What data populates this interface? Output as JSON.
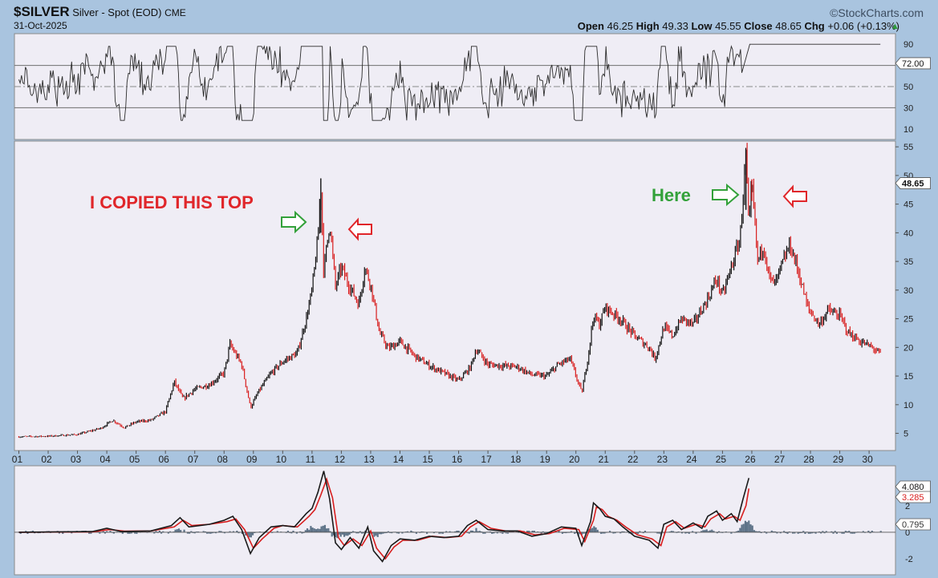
{
  "header": {
    "symbol": "$SILVER",
    "name": "Silver - Spot (EOD)",
    "exchange": "CME",
    "date": "31-Oct-2025",
    "brand": "©StockCharts.com",
    "open_label": "Open",
    "open": "46.25",
    "high_label": "High",
    "high": "49.33",
    "low_label": "Low",
    "low": "45.55",
    "close_label": "Close",
    "close": "48.65",
    "chg_label": "Chg",
    "chg": "+0.06 (+0.13%)",
    "chg_arrow": "▲"
  },
  "colors": {
    "background": "#a9c4df",
    "panel": "#efedf5",
    "up": "#111111",
    "down": "#d81e1e",
    "annotation_red": "#e0262a",
    "annotation_green": "#33a13a",
    "hist": "#5e7388"
  },
  "annotations": {
    "left_text": "I COPIED THIS TOP",
    "right_text": "Here"
  },
  "chart_data": [
    {
      "type": "line",
      "panel": "rsi",
      "ylim": [
        0,
        100
      ],
      "ticks": [
        "90",
        "70",
        "50",
        "30",
        "10"
      ],
      "guide_lines": [
        70,
        50,
        30
      ],
      "last_value_label": "72.00",
      "last_value": 72
    },
    {
      "type": "candlestick",
      "panel": "price",
      "ylim": [
        2,
        56
      ],
      "y_ticks": [
        "55",
        "50",
        "45",
        "40",
        "35",
        "30",
        "25",
        "20",
        "15",
        "10",
        "5"
      ],
      "x_ticks": [
        "01",
        "02",
        "03",
        "04",
        "05",
        "06",
        "07",
        "08",
        "09",
        "10",
        "11",
        "12",
        "13",
        "14",
        "15",
        "16",
        "17",
        "18",
        "19",
        "20",
        "21",
        "22",
        "23",
        "24",
        "25",
        "26",
        "27",
        "28",
        "29",
        "30"
      ],
      "last_value_label": "48.65",
      "last_value": 48.65,
      "series": [
        {
          "values": [
            [
              2001.0,
              4.4
            ],
            [
              2002.0,
              4.5
            ],
            [
              2003.0,
              4.8
            ],
            [
              2003.8,
              5.9
            ],
            [
              2004.2,
              7.3
            ],
            [
              2004.6,
              6.0
            ],
            [
              2005.0,
              7.0
            ],
            [
              2005.5,
              7.3
            ],
            [
              2006.0,
              8.8
            ],
            [
              2006.3,
              14.0
            ],
            [
              2006.6,
              11.0
            ],
            [
              2007.0,
              12.7
            ],
            [
              2007.5,
              13.5
            ],
            [
              2008.0,
              15.5
            ],
            [
              2008.2,
              20.5
            ],
            [
              2008.6,
              17.0
            ],
            [
              2008.9,
              9.5
            ],
            [
              2009.2,
              12.5
            ],
            [
              2009.6,
              15.5
            ],
            [
              2010.0,
              17.5
            ],
            [
              2010.5,
              19.0
            ],
            [
              2010.8,
              25.0
            ],
            [
              2011.0,
              30.0
            ],
            [
              2011.2,
              39.0
            ],
            [
              2011.3,
              48.5
            ],
            [
              2011.4,
              33.0
            ],
            [
              2011.6,
              42.0
            ],
            [
              2011.8,
              30.5
            ],
            [
              2012.0,
              34.0
            ],
            [
              2012.2,
              31.5
            ],
            [
              2012.6,
              27.5
            ],
            [
              2012.8,
              34.0
            ],
            [
              2013.0,
              31.0
            ],
            [
              2013.3,
              22.5
            ],
            [
              2013.6,
              19.8
            ],
            [
              2014.0,
              21.0
            ],
            [
              2014.5,
              18.5
            ],
            [
              2015.0,
              16.8
            ],
            [
              2015.5,
              15.5
            ],
            [
              2016.0,
              14.2
            ],
            [
              2016.4,
              16.5
            ],
            [
              2016.6,
              19.7
            ],
            [
              2017.0,
              17.0
            ],
            [
              2017.5,
              16.8
            ],
            [
              2018.0,
              16.6
            ],
            [
              2018.5,
              15.2
            ],
            [
              2019.0,
              15.0
            ],
            [
              2019.4,
              17.0
            ],
            [
              2019.8,
              18.0
            ],
            [
              2020.2,
              12.0
            ],
            [
              2020.4,
              18.0
            ],
            [
              2020.6,
              25.5
            ],
            [
              2020.8,
              24.0
            ],
            [
              2021.0,
              27.0
            ],
            [
              2021.5,
              25.0
            ],
            [
              2022.0,
              22.0
            ],
            [
              2022.5,
              20.0
            ],
            [
              2022.7,
              18.0
            ],
            [
              2023.0,
              23.5
            ],
            [
              2023.3,
              22.0
            ],
            [
              2023.6,
              25.0
            ],
            [
              2024.0,
              24.0
            ],
            [
              2024.5,
              28.5
            ],
            [
              2024.8,
              32.0
            ],
            [
              2025.0,
              29.0
            ],
            [
              2025.3,
              34.0
            ],
            [
              2025.6,
              39.0
            ],
            [
              2025.8,
              54.0
            ],
            [
              2025.9,
              40.0
            ],
            [
              2026.0,
              48.65
            ],
            [
              2026.2,
              35.0
            ],
            [
              2026.4,
              38.0
            ],
            [
              2026.6,
              32.0
            ],
            [
              2026.8,
              31.0
            ],
            [
              2027.0,
              34.0
            ],
            [
              2027.3,
              38.0
            ],
            [
              2027.6,
              33.0
            ],
            [
              2027.9,
              27.0
            ],
            [
              2028.3,
              24.0
            ],
            [
              2028.6,
              26.5
            ],
            [
              2029.0,
              25.5
            ],
            [
              2029.3,
              22.5
            ],
            [
              2029.7,
              21.0
            ],
            [
              2030.1,
              20.0
            ],
            [
              2030.4,
              18.8
            ]
          ]
        }
      ]
    },
    {
      "type": "line",
      "panel": "macd",
      "ylim": [
        -3.2,
        5
      ],
      "ticks": [
        "2",
        "0",
        "-2"
      ],
      "last_value_labels": [
        "4.080",
        "3.285",
        "0.795"
      ],
      "last_values": [
        4.08,
        3.285,
        0.795
      ],
      "series": [
        {
          "name_key": "macd",
          "values": [
            [
              2001.0,
              0.0
            ],
            [
              2003.5,
              0.05
            ],
            [
              2004.0,
              0.3
            ],
            [
              2004.5,
              0.05
            ],
            [
              2005.5,
              0.1
            ],
            [
              2006.2,
              0.5
            ],
            [
              2006.5,
              1.1
            ],
            [
              2006.8,
              0.4
            ],
            [
              2007.5,
              0.6
            ],
            [
              2008.0,
              0.9
            ],
            [
              2008.3,
              1.2
            ],
            [
              2008.6,
              0.2
            ],
            [
              2008.9,
              -1.6
            ],
            [
              2009.2,
              -0.4
            ],
            [
              2009.6,
              0.4
            ],
            [
              2010.0,
              0.5
            ],
            [
              2010.4,
              0.4
            ],
            [
              2010.8,
              1.4
            ],
            [
              2011.0,
              1.8
            ],
            [
              2011.2,
              3.0
            ],
            [
              2011.4,
              4.6
            ],
            [
              2011.6,
              2.5
            ],
            [
              2011.8,
              -0.8
            ],
            [
              2012.0,
              -1.3
            ],
            [
              2012.3,
              -0.4
            ],
            [
              2012.6,
              -1.2
            ],
            [
              2012.9,
              0.4
            ],
            [
              2013.1,
              -1.4
            ],
            [
              2013.4,
              -2.2
            ],
            [
              2013.7,
              -1.0
            ],
            [
              2014.0,
              -0.5
            ],
            [
              2014.5,
              -0.6
            ],
            [
              2015.0,
              -0.3
            ],
            [
              2015.5,
              -0.4
            ],
            [
              2016.0,
              -0.3
            ],
            [
              2016.3,
              0.5
            ],
            [
              2016.6,
              0.9
            ],
            [
              2017.0,
              0.2
            ],
            [
              2017.5,
              0.1
            ],
            [
              2018.0,
              0.1
            ],
            [
              2018.5,
              -0.3
            ],
            [
              2019.0,
              -0.1
            ],
            [
              2019.5,
              0.4
            ],
            [
              2020.0,
              0.3
            ],
            [
              2020.2,
              -1.0
            ],
            [
              2020.5,
              0.8
            ],
            [
              2020.6,
              2.2
            ],
            [
              2020.8,
              1.8
            ],
            [
              2021.0,
              1.2
            ],
            [
              2021.3,
              1.0
            ],
            [
              2021.6,
              0.4
            ],
            [
              2022.0,
              -0.3
            ],
            [
              2022.5,
              -0.6
            ],
            [
              2022.8,
              -1.2
            ],
            [
              2023.0,
              0.6
            ],
            [
              2023.3,
              0.9
            ],
            [
              2023.6,
              0.2
            ],
            [
              2024.0,
              0.7
            ],
            [
              2024.3,
              0.3
            ],
            [
              2024.5,
              1.2
            ],
            [
              2024.8,
              1.6
            ],
            [
              2025.0,
              0.9
            ],
            [
              2025.3,
              1.4
            ],
            [
              2025.5,
              0.8
            ],
            [
              2025.7,
              2.5
            ],
            [
              2025.9,
              4.08
            ]
          ]
        },
        {
          "name_key": "signal",
          "values": [
            [
              2001.0,
              0.0
            ],
            [
              2003.5,
              0.03
            ],
            [
              2004.1,
              0.2
            ],
            [
              2004.6,
              0.08
            ],
            [
              2005.5,
              0.1
            ],
            [
              2006.3,
              0.4
            ],
            [
              2006.6,
              0.9
            ],
            [
              2006.9,
              0.5
            ],
            [
              2007.5,
              0.6
            ],
            [
              2008.1,
              0.8
            ],
            [
              2008.4,
              1.0
            ],
            [
              2008.7,
              0.2
            ],
            [
              2009.0,
              -1.2
            ],
            [
              2009.3,
              -0.5
            ],
            [
              2009.7,
              0.3
            ],
            [
              2010.0,
              0.5
            ],
            [
              2010.5,
              0.4
            ],
            [
              2010.9,
              1.2
            ],
            [
              2011.1,
              1.7
            ],
            [
              2011.3,
              2.8
            ],
            [
              2011.5,
              4.0
            ],
            [
              2011.7,
              2.6
            ],
            [
              2011.9,
              -0.4
            ],
            [
              2012.1,
              -1.0
            ],
            [
              2012.4,
              -0.5
            ],
            [
              2012.7,
              -1.0
            ],
            [
              2013.0,
              0.1
            ],
            [
              2013.2,
              -1.2
            ],
            [
              2013.5,
              -2.0
            ],
            [
              2013.8,
              -1.1
            ],
            [
              2014.1,
              -0.6
            ],
            [
              2014.6,
              -0.6
            ],
            [
              2015.1,
              -0.3
            ],
            [
              2015.6,
              -0.4
            ],
            [
              2016.1,
              -0.3
            ],
            [
              2016.4,
              0.4
            ],
            [
              2016.7,
              0.8
            ],
            [
              2017.1,
              0.3
            ],
            [
              2017.6,
              0.1
            ],
            [
              2018.1,
              0.1
            ],
            [
              2018.6,
              -0.2
            ],
            [
              2019.1,
              -0.1
            ],
            [
              2019.6,
              0.3
            ],
            [
              2020.1,
              0.2
            ],
            [
              2020.3,
              -0.7
            ],
            [
              2020.6,
              0.9
            ],
            [
              2020.7,
              1.9
            ],
            [
              2020.9,
              1.7
            ],
            [
              2021.1,
              1.2
            ],
            [
              2021.4,
              0.9
            ],
            [
              2021.7,
              0.4
            ],
            [
              2022.1,
              -0.2
            ],
            [
              2022.6,
              -0.5
            ],
            [
              2022.9,
              -1.0
            ],
            [
              2023.1,
              0.4
            ],
            [
              2023.4,
              0.8
            ],
            [
              2023.7,
              0.3
            ],
            [
              2024.1,
              0.6
            ],
            [
              2024.4,
              0.4
            ],
            [
              2024.6,
              1.0
            ],
            [
              2024.9,
              1.4
            ],
            [
              2025.1,
              1.0
            ],
            [
              2025.4,
              1.2
            ],
            [
              2025.6,
              0.9
            ],
            [
              2025.8,
              2.0
            ],
            [
              2025.9,
              3.285
            ]
          ]
        },
        {
          "name_key": "histogram",
          "values": [
            [
              2006.5,
              0.2
            ],
            [
              2008.9,
              -0.4
            ],
            [
              2011.0,
              0.5
            ],
            [
              2011.4,
              0.6
            ],
            [
              2011.8,
              -0.4
            ],
            [
              2012.1,
              -0.3
            ],
            [
              2013.2,
              -0.4
            ],
            [
              2016.6,
              0.2
            ],
            [
              2020.2,
              -0.3
            ],
            [
              2020.6,
              0.5
            ],
            [
              2022.8,
              -0.2
            ],
            [
              2024.5,
              0.2
            ],
            [
              2025.7,
              0.5
            ],
            [
              2025.9,
              0.795
            ]
          ]
        }
      ]
    }
  ]
}
